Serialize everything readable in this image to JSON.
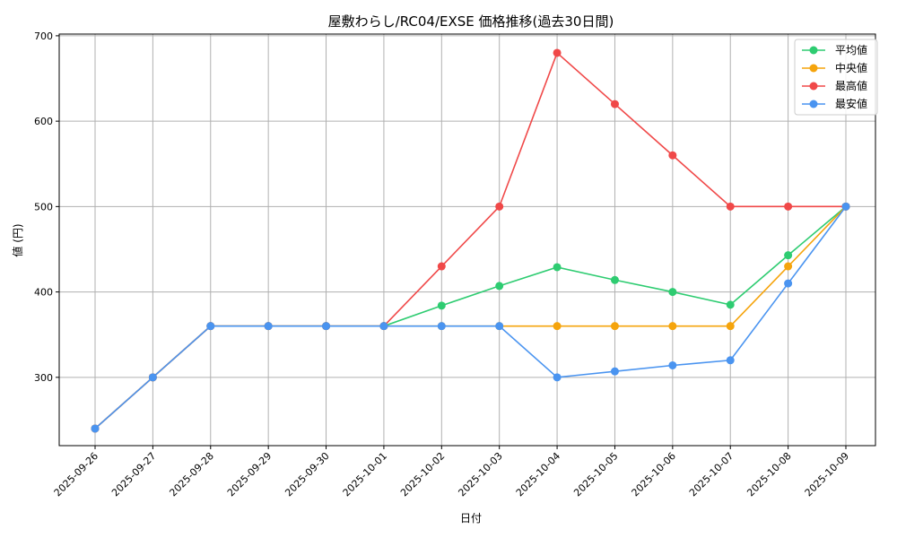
{
  "chart_data": {
    "type": "line",
    "title": "屋敷わらし/RC04/EXSE 価格推移(過去30日間)",
    "xlabel": "日付",
    "ylabel": "値 (円)",
    "categories": [
      "2025-09-26",
      "2025-09-27",
      "2025-09-28",
      "2025-09-29",
      "2025-09-30",
      "2025-10-01",
      "2025-10-02",
      "2025-10-03",
      "2025-10-04",
      "2025-10-05",
      "2025-10-06",
      "2025-10-07",
      "2025-10-08",
      "2025-10-09"
    ],
    "ylim": [
      220,
      702
    ],
    "yticks": [
      300,
      400,
      500,
      600,
      700
    ],
    "grid": true,
    "legend_position": "top-right",
    "series": [
      {
        "name": "平均値",
        "color": "#2ecc71",
        "values": [
          240,
          300,
          360,
          360,
          360,
          360,
          384,
          407,
          429,
          414,
          400,
          385,
          443,
          500
        ]
      },
      {
        "name": "中央値",
        "color": "#f5a40c",
        "values": [
          240,
          300,
          360,
          360,
          360,
          360,
          360,
          360,
          360,
          360,
          360,
          360,
          430,
          500
        ]
      },
      {
        "name": "最高値",
        "color": "#f04848",
        "values": [
          240,
          300,
          360,
          360,
          360,
          360,
          430,
          500,
          680,
          620,
          560,
          500,
          500,
          500
        ]
      },
      {
        "name": "最安値",
        "color": "#4a94f0",
        "values": [
          240,
          300,
          360,
          360,
          360,
          360,
          360,
          360,
          300,
          307,
          314,
          320,
          410,
          500
        ]
      }
    ]
  }
}
